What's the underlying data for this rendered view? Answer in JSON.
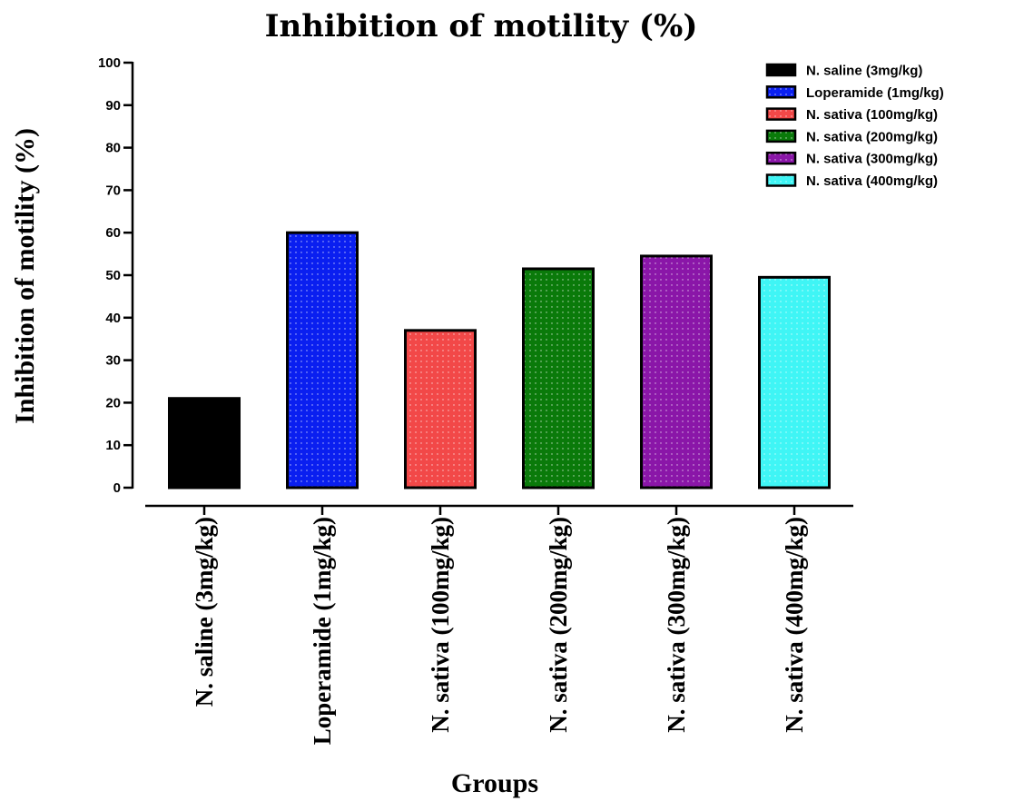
{
  "chart_data": {
    "type": "bar",
    "title": "Inhibition of motility (%)",
    "xlabel": "Groups",
    "ylabel": "Inhibition of motility (%)",
    "ylim": [
      0,
      100
    ],
    "yticks": [
      0,
      10,
      20,
      30,
      40,
      50,
      60,
      70,
      80,
      90,
      100
    ],
    "grid": false,
    "legend_position": "top-right",
    "categories": [
      "N. saline (3mg/kg)",
      "Loperamide (1mg/kg)",
      "N. sativa (100mg/kg)",
      "N. sativa (200mg/kg)",
      "N. sativa (300mg/kg)",
      "N. sativa (400mg/kg)"
    ],
    "values": [
      21,
      60,
      37,
      51.5,
      54.5,
      49.5
    ],
    "colors": [
      "#000000",
      "#0a1ff0",
      "#f24848",
      "#0a7a0a",
      "#8a16a8",
      "#3ff5f5"
    ],
    "legend": [
      "N. saline (3mg/kg)",
      "Loperamide (1mg/kg)",
      "N. sativa (100mg/kg)",
      "N. sativa (200mg/kg)",
      "N. sativa (300mg/kg)",
      "N. sativa (400mg/kg)"
    ]
  }
}
